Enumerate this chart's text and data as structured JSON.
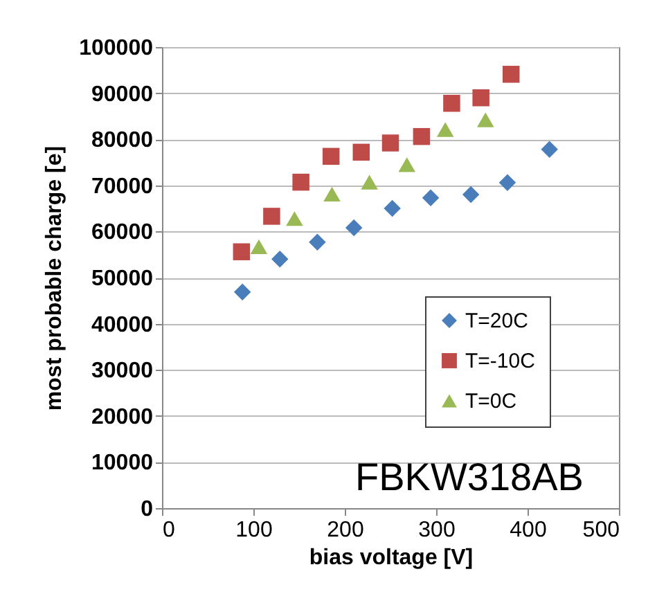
{
  "chart_data": {
    "type": "scatter",
    "xlabel": "bias voltage [V]",
    "ylabel": "most probable charge [e]",
    "xlim": [
      0,
      500
    ],
    "xticks": [
      0,
      100,
      200,
      300,
      400,
      500
    ],
    "ylim": [
      0,
      100000
    ],
    "yticks": [
      0,
      10000,
      20000,
      30000,
      40000,
      50000,
      60000,
      70000,
      80000,
      90000,
      100000
    ],
    "grid": "y",
    "legend": "right",
    "annotations": [
      "FBKW318AB"
    ],
    "series": [
      {
        "name": "T=20C",
        "color": "#4a7ebb",
        "marker": "diamond",
        "x": [
          88,
          129,
          170,
          210,
          252,
          294,
          338,
          378,
          424
        ],
        "values": [
          46900,
          54000,
          57700,
          60800,
          65000,
          67300,
          68000,
          70600,
          77800
        ]
      },
      {
        "name": "T=-10C",
        "color": "#be4b48",
        "marker": "square",
        "x": [
          87,
          120,
          152,
          185,
          218,
          250,
          284,
          317,
          349,
          382
        ],
        "values": [
          55600,
          63300,
          70700,
          76300,
          77200,
          79200,
          80600,
          87800,
          89000,
          94100
        ]
      },
      {
        "name": "T=0C",
        "color": "#98b954",
        "marker": "triangle",
        "x": [
          106,
          145,
          186,
          227,
          268,
          310,
          354
        ],
        "values": [
          56700,
          62800,
          68100,
          70700,
          74500,
          82100,
          84200
        ]
      }
    ]
  }
}
